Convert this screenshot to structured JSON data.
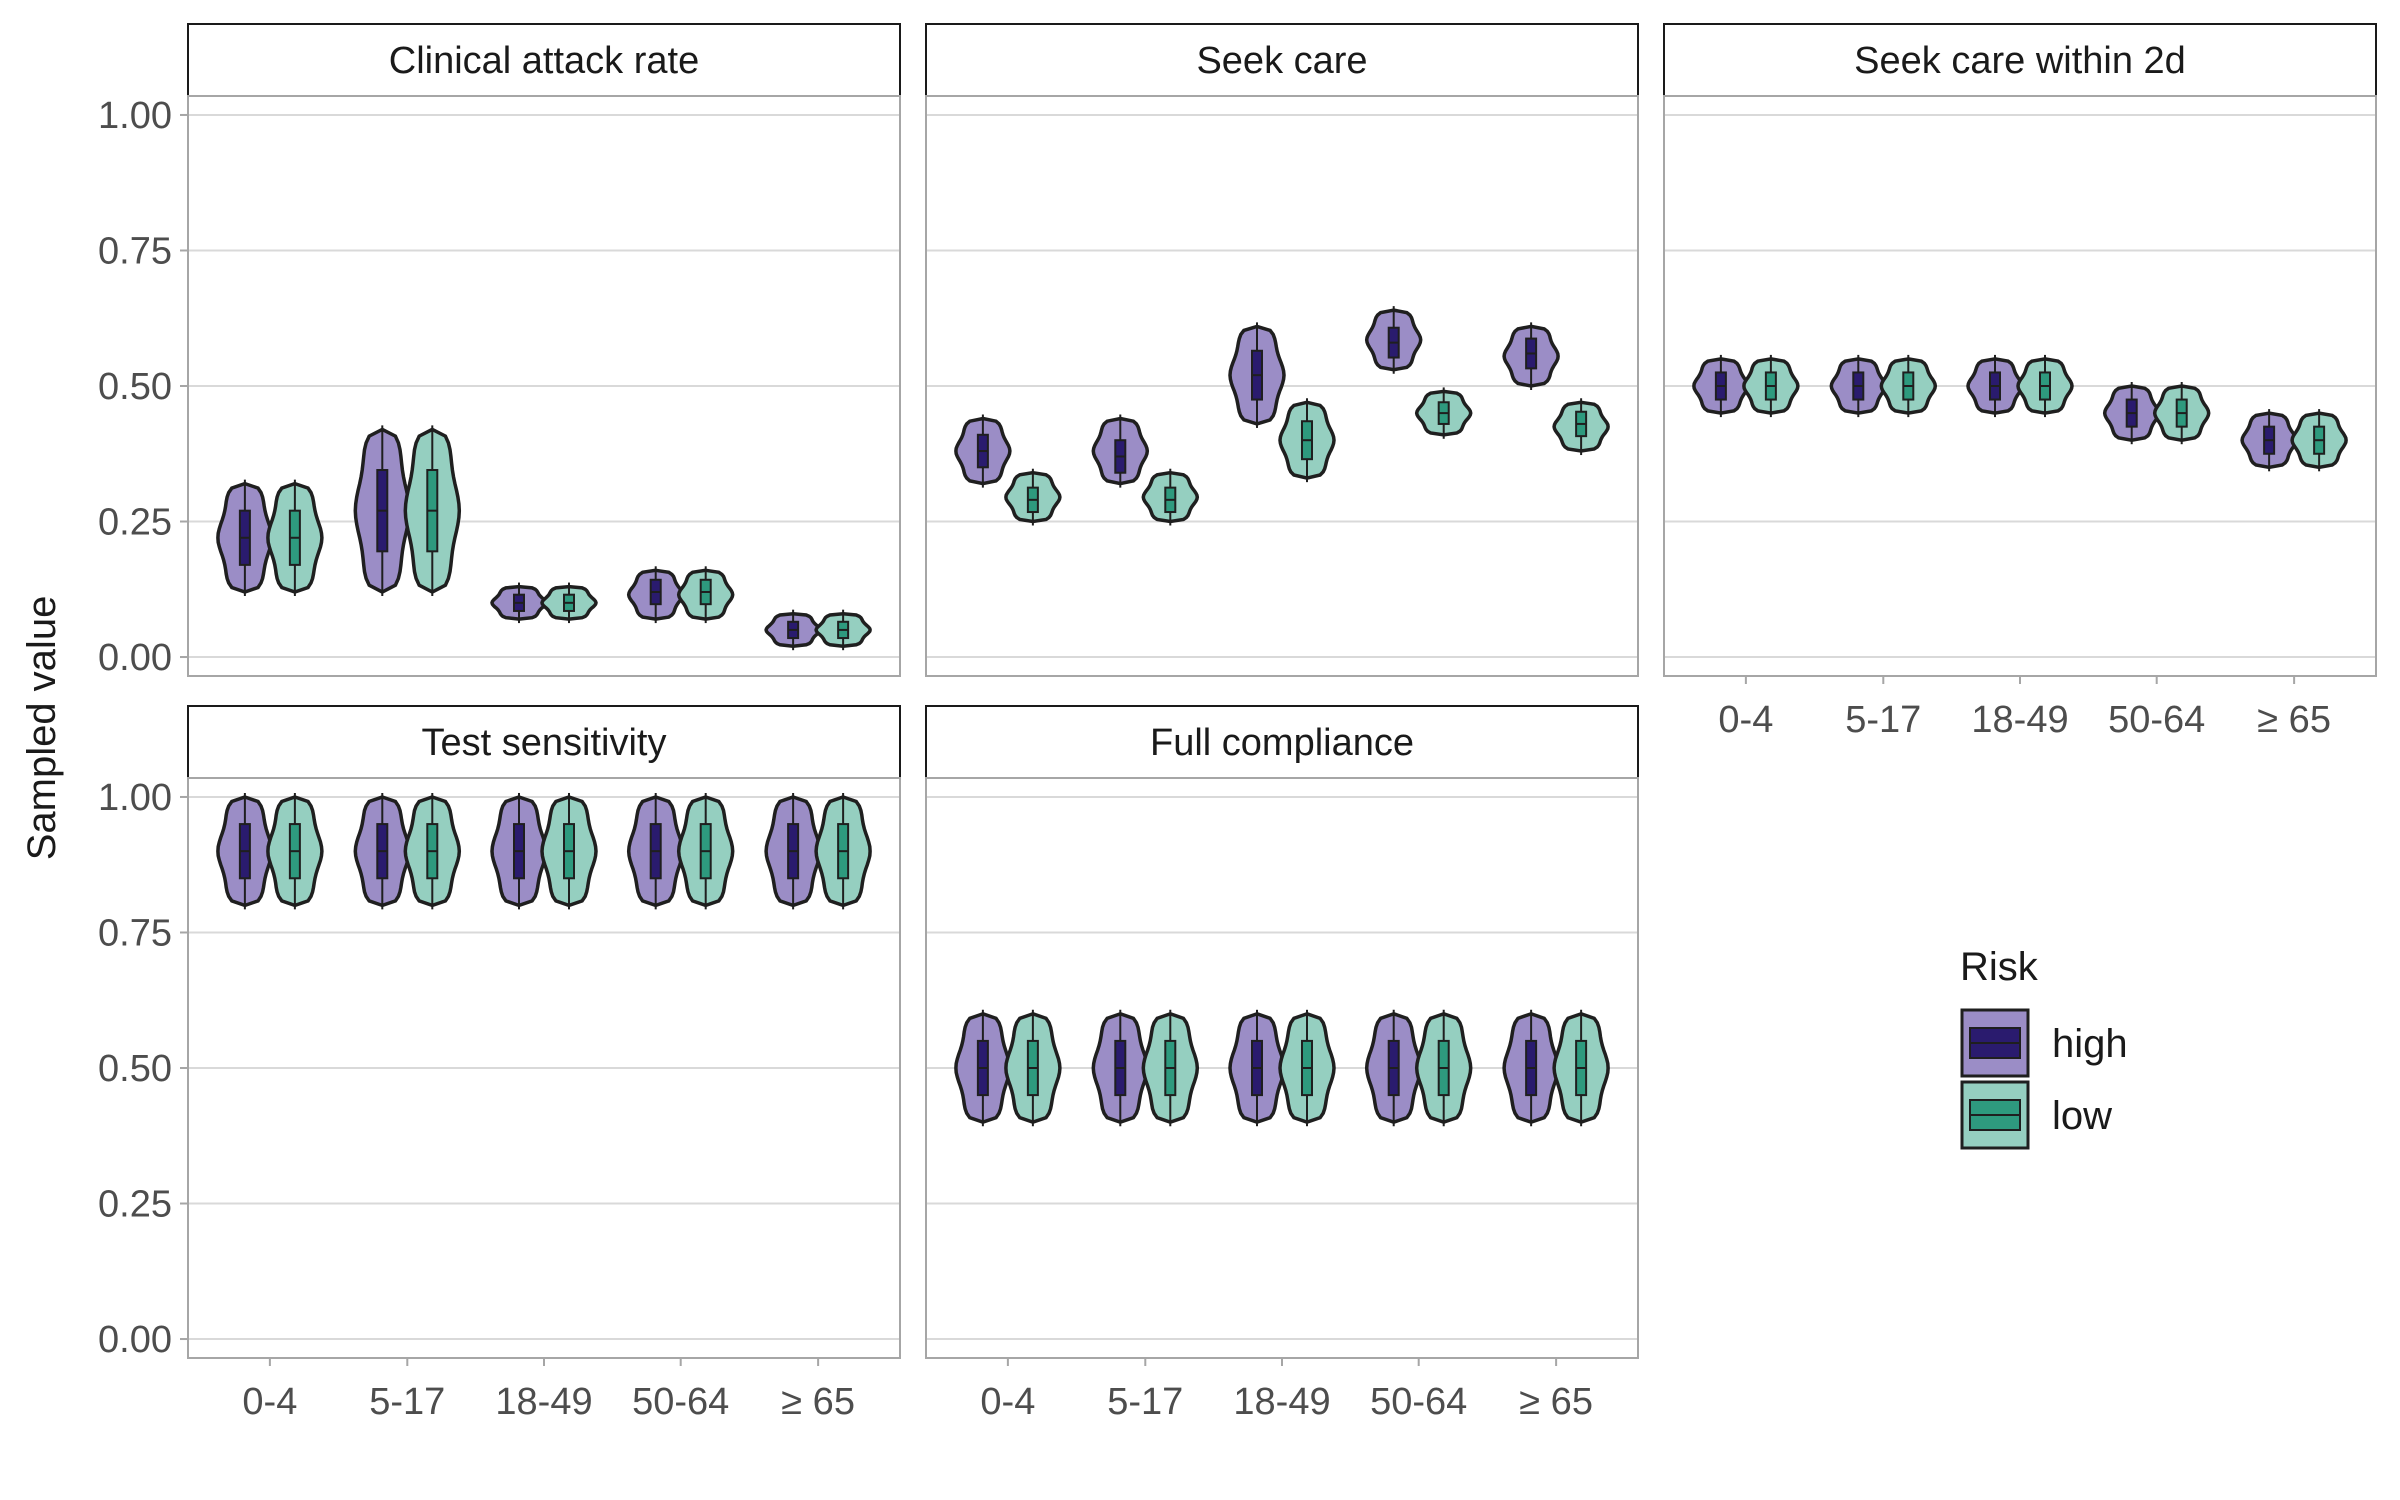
{
  "chart_data": {
    "type": "violin",
    "ylabel": "Sampled value",
    "y_ticks": [
      "0.00",
      "0.25",
      "0.50",
      "0.75",
      "1.00"
    ],
    "ylim": [
      0,
      1
    ],
    "categories": [
      "0-4",
      "5-17",
      "18-49",
      "50-64",
      "≥ 65"
    ],
    "legend": {
      "title": "Risk",
      "placement": "right",
      "entries": [
        {
          "name": "high",
          "fill": "#9b8dc6",
          "box": "#2a1b6e"
        },
        {
          "name": "low",
          "fill": "#95cfc0",
          "box": "#2e9a7e"
        }
      ]
    },
    "grid": true,
    "panels": [
      {
        "title": "Clinical attack rate",
        "series": [
          {
            "name": "high",
            "min": [
              0.12,
              0.12,
              0.07,
              0.07,
              0.02
            ],
            "max": [
              0.32,
              0.42,
              0.13,
              0.16,
              0.08
            ],
            "median": [
              0.22,
              0.27,
              0.1,
              0.12,
              0.05
            ]
          },
          {
            "name": "low",
            "min": [
              0.12,
              0.12,
              0.07,
              0.07,
              0.02
            ],
            "max": [
              0.32,
              0.42,
              0.13,
              0.16,
              0.08
            ],
            "median": [
              0.22,
              0.27,
              0.1,
              0.12,
              0.05
            ]
          }
        ]
      },
      {
        "title": "Seek care",
        "series": [
          {
            "name": "high",
            "min": [
              0.32,
              0.32,
              0.43,
              0.53,
              0.5
            ],
            "max": [
              0.44,
              0.44,
              0.61,
              0.64,
              0.61
            ],
            "median": [
              0.38,
              0.37,
              0.52,
              0.58,
              0.56
            ]
          },
          {
            "name": "low",
            "min": [
              0.25,
              0.25,
              0.33,
              0.41,
              0.38
            ],
            "max": [
              0.34,
              0.34,
              0.47,
              0.49,
              0.47
            ],
            "median": [
              0.29,
              0.29,
              0.4,
              0.45,
              0.43
            ]
          }
        ]
      },
      {
        "title": "Seek care within 2d",
        "series": [
          {
            "name": "high",
            "min": [
              0.45,
              0.45,
              0.45,
              0.4,
              0.35
            ],
            "max": [
              0.55,
              0.55,
              0.55,
              0.5,
              0.45
            ],
            "median": [
              0.5,
              0.5,
              0.5,
              0.45,
              0.4
            ]
          },
          {
            "name": "low",
            "min": [
              0.45,
              0.45,
              0.45,
              0.4,
              0.35
            ],
            "max": [
              0.55,
              0.55,
              0.55,
              0.5,
              0.45
            ],
            "median": [
              0.5,
              0.5,
              0.5,
              0.45,
              0.4
            ]
          }
        ]
      },
      {
        "title": "Test sensitivity",
        "series": [
          {
            "name": "high",
            "min": [
              0.8,
              0.8,
              0.8,
              0.8,
              0.8
            ],
            "max": [
              1.0,
              1.0,
              1.0,
              1.0,
              1.0
            ],
            "median": [
              0.9,
              0.9,
              0.9,
              0.9,
              0.9
            ]
          },
          {
            "name": "low",
            "min": [
              0.8,
              0.8,
              0.8,
              0.8,
              0.8
            ],
            "max": [
              1.0,
              1.0,
              1.0,
              1.0,
              1.0
            ],
            "median": [
              0.9,
              0.9,
              0.9,
              0.9,
              0.9
            ]
          }
        ]
      },
      {
        "title": "Full compliance",
        "series": [
          {
            "name": "high",
            "min": [
              0.4,
              0.4,
              0.4,
              0.4,
              0.4
            ],
            "max": [
              0.6,
              0.6,
              0.6,
              0.6,
              0.6
            ],
            "median": [
              0.5,
              0.5,
              0.5,
              0.5,
              0.5
            ]
          },
          {
            "name": "low",
            "min": [
              0.4,
              0.4,
              0.4,
              0.4,
              0.4
            ],
            "max": [
              0.6,
              0.6,
              0.6,
              0.6,
              0.6
            ],
            "median": [
              0.5,
              0.5,
              0.5,
              0.5,
              0.5
            ]
          }
        ]
      }
    ]
  }
}
